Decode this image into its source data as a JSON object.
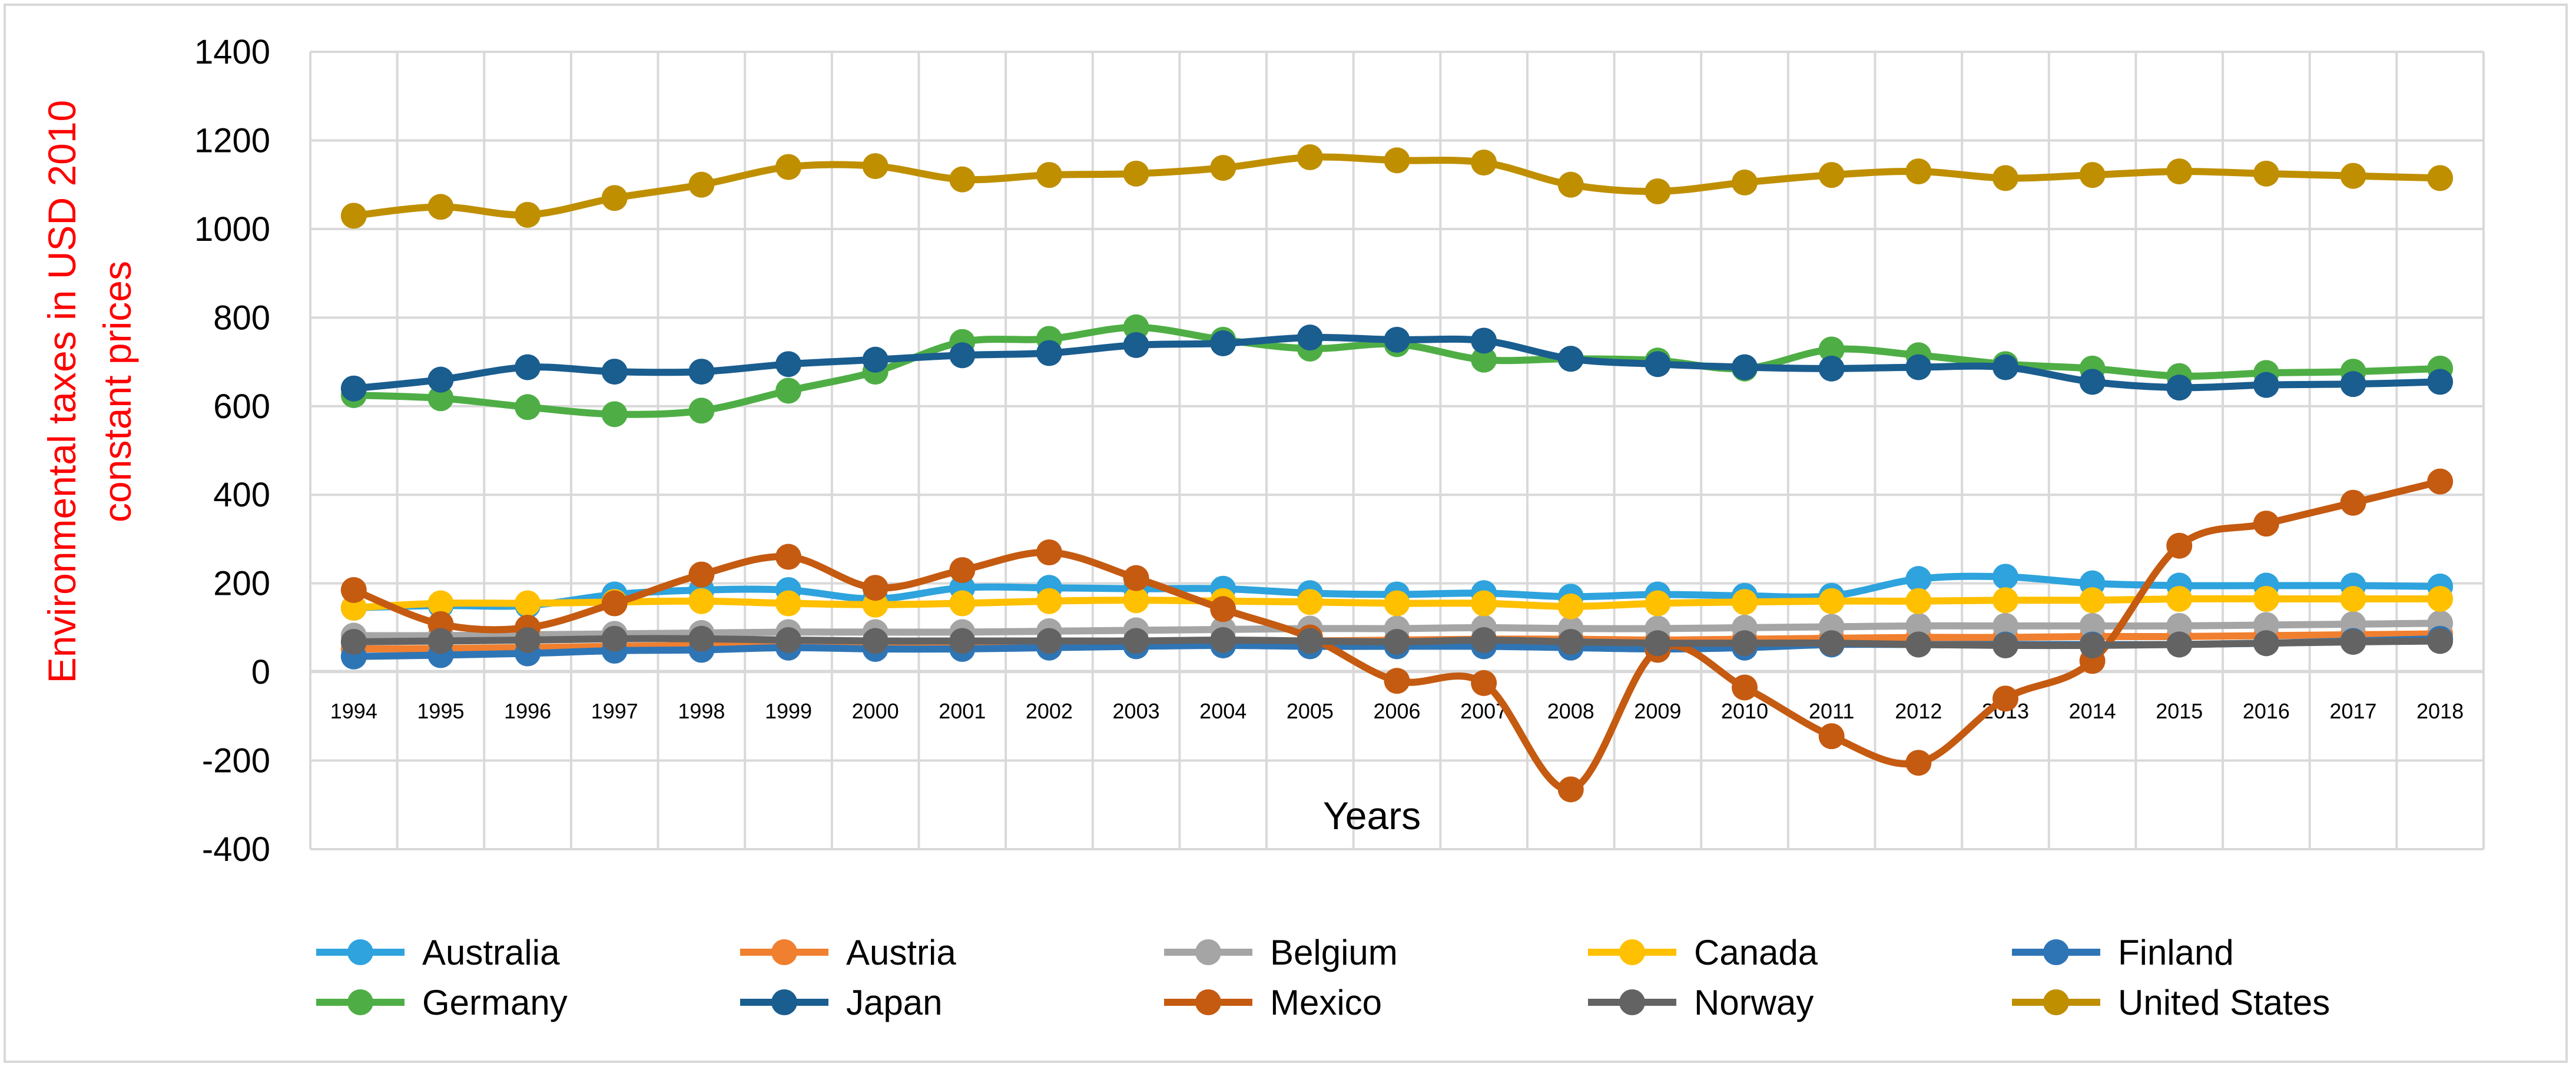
{
  "chart_data": {
    "type": "line",
    "title": "",
    "xlabel": "Years",
    "ylabel_lines": [
      "Environmental taxes in USD 2010",
      "constant prices"
    ],
    "ylim": [
      -400,
      1400
    ],
    "yticks": [
      -400,
      -200,
      0,
      200,
      400,
      600,
      800,
      1000,
      1200,
      1400
    ],
    "grid": true,
    "legend_position": "bottom",
    "x": [
      "1994",
      "1995",
      "1996",
      "1997",
      "1998",
      "1999",
      "2000",
      "2001",
      "2002",
      "2003",
      "2004",
      "2005",
      "2006",
      "2007",
      "2008",
      "2009",
      "2010",
      "2011",
      "2012",
      "2013",
      "2014",
      "2015",
      "2016",
      "2017",
      "2018"
    ],
    "series": [
      {
        "name": "Australia",
        "color": "#2ea3dd",
        "values": [
          145,
          150,
          150,
          175,
          185,
          185,
          165,
          190,
          190,
          188,
          188,
          178,
          175,
          178,
          170,
          175,
          172,
          172,
          210,
          215,
          200,
          195,
          195,
          195,
          193
        ]
      },
      {
        "name": "Austria",
        "color": "#f07f2f",
        "values": [
          52,
          53,
          55,
          58,
          60,
          62,
          60,
          62,
          64,
          66,
          68,
          70,
          72,
          74,
          74,
          72,
          74,
          76,
          78,
          78,
          80,
          80,
          82,
          84,
          86
        ]
      },
      {
        "name": "Belgium",
        "color": "#a5a5a5",
        "values": [
          82,
          82,
          84,
          86,
          88,
          90,
          90,
          90,
          92,
          94,
          96,
          98,
          98,
          100,
          98,
          98,
          100,
          102,
          104,
          104,
          104,
          104,
          106,
          108,
          110
        ]
      },
      {
        "name": "Canada",
        "color": "#ffc000",
        "values": [
          145,
          155,
          155,
          158,
          160,
          155,
          152,
          155,
          160,
          162,
          160,
          158,
          155,
          155,
          148,
          155,
          158,
          160,
          160,
          162,
          162,
          165,
          165,
          165,
          165
        ]
      },
      {
        "name": "Finland",
        "color": "#2e75b6",
        "values": [
          35,
          38,
          42,
          48,
          50,
          55,
          52,
          52,
          55,
          58,
          60,
          58,
          58,
          58,
          55,
          52,
          55,
          62,
          62,
          62,
          62,
          62,
          65,
          70,
          75
        ]
      },
      {
        "name": "Germany",
        "color": "#4eae45",
        "values": [
          625,
          618,
          598,
          582,
          590,
          635,
          678,
          745,
          752,
          778,
          750,
          730,
          740,
          705,
          707,
          703,
          685,
          728,
          715,
          695,
          685,
          668,
          675,
          678,
          685
        ]
      },
      {
        "name": "Japan",
        "color": "#1a5d8f",
        "values": [
          640,
          660,
          688,
          678,
          678,
          695,
          705,
          715,
          720,
          738,
          742,
          755,
          750,
          748,
          707,
          695,
          688,
          685,
          688,
          688,
          655,
          642,
          648,
          650,
          655
        ]
      },
      {
        "name": "Mexico",
        "color": "#c55a11",
        "values": [
          185,
          108,
          100,
          155,
          220,
          260,
          190,
          230,
          270,
          212,
          142,
          78,
          -20,
          -25,
          -265,
          50,
          -35,
          -145,
          -205,
          -60,
          25,
          285,
          335,
          382,
          430
        ]
      },
      {
        "name": "Norway",
        "color": "#636363",
        "values": [
          68,
          70,
          72,
          75,
          75,
          72,
          70,
          70,
          70,
          70,
          72,
          70,
          68,
          72,
          68,
          65,
          65,
          65,
          62,
          60,
          60,
          62,
          65,
          68,
          70
        ]
      },
      {
        "name": "United States",
        "color": "#bf8f00",
        "values": [
          1030,
          1050,
          1032,
          1070,
          1100,
          1140,
          1142,
          1112,
          1122,
          1125,
          1138,
          1162,
          1155,
          1150,
          1100,
          1085,
          1105,
          1122,
          1130,
          1115,
          1122,
          1130,
          1125,
          1120,
          1115
        ]
      }
    ]
  }
}
